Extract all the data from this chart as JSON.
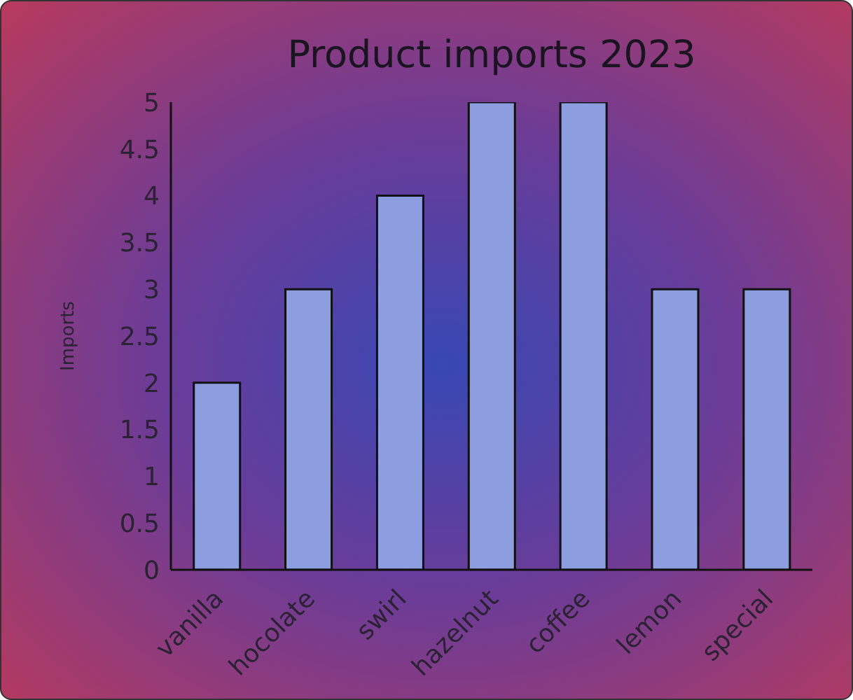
{
  "chart_data": {
    "type": "bar",
    "title": "Product imports 2023",
    "ylabel": "Imports",
    "categories": [
      "vanilla",
      "hocolate",
      "swirl",
      "hazelnut",
      "coffee",
      "lemon",
      "special"
    ],
    "values": [
      2,
      3,
      4,
      5,
      5,
      3,
      3
    ],
    "color": "#8c9ee0",
    "ylim": [
      0,
      5
    ],
    "yticks": [
      0,
      0.5,
      1,
      1.5,
      2,
      2.5,
      3,
      3.5,
      4,
      4.5,
      5
    ],
    "grid": false,
    "legend": false
  }
}
